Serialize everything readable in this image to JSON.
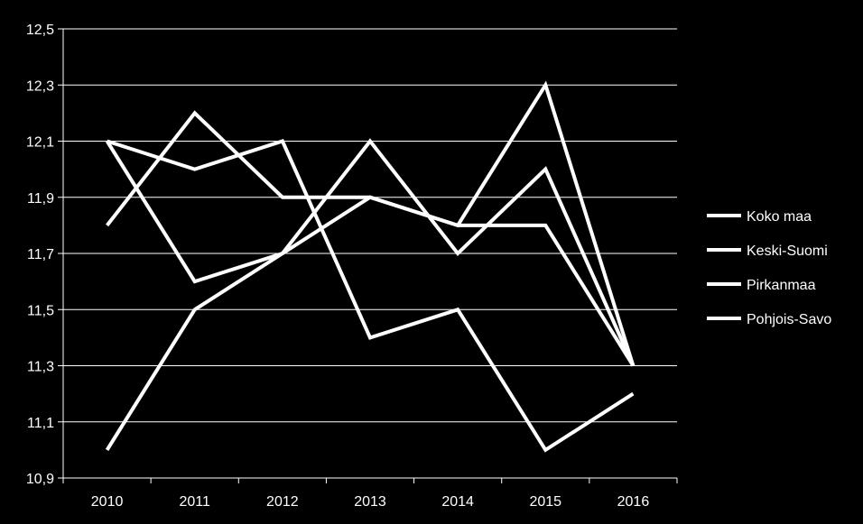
{
  "chart_data": {
    "type": "line",
    "title": "",
    "xlabel": "",
    "ylabel": "",
    "categories": [
      "2010",
      "2011",
      "2012",
      "2013",
      "2014",
      "2015",
      "2016"
    ],
    "ylim": [
      10.9,
      12.5
    ],
    "y_ticks": [
      "10,9",
      "11,1",
      "11,3",
      "11,5",
      "11,7",
      "11,9",
      "12,1",
      "12,3",
      "12,5"
    ],
    "grid": true,
    "legend_position": "right",
    "line_color": "#ffffff",
    "background": "#000000",
    "series": [
      {
        "name": "Koko maa",
        "values": [
          12.1,
          12.0,
          12.1,
          11.4,
          11.5,
          11.0,
          11.2
        ]
      },
      {
        "name": "Keski-Suomi",
        "values": [
          12.1,
          11.6,
          11.7,
          11.9,
          11.8,
          11.8,
          11.3
        ]
      },
      {
        "name": "Pirkanmaa",
        "values": [
          11.8,
          12.2,
          11.9,
          11.9,
          11.8,
          12.3,
          11.3
        ]
      },
      {
        "name": "Pohjois-Savo",
        "values": [
          11.0,
          11.5,
          11.7,
          12.1,
          11.7,
          12.0,
          11.3
        ]
      }
    ]
  }
}
